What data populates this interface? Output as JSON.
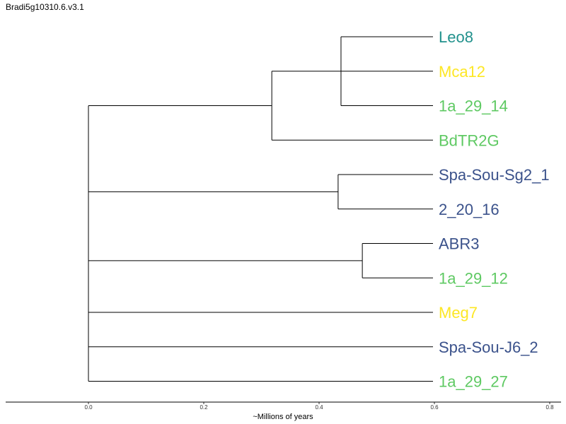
{
  "title": "Bradi5g10310.6.v3.1",
  "colors": {
    "teal": "#21918c",
    "yellow": "#fde725",
    "green": "#5ec962",
    "navy": "#3b528b",
    "line": "#000000"
  },
  "leaves": [
    {
      "name": "Leo8",
      "color": "teal"
    },
    {
      "name": "Mca12",
      "color": "yellow"
    },
    {
      "name": "1a_29_14",
      "color": "green"
    },
    {
      "name": "BdTR2G",
      "color": "green"
    },
    {
      "name": "Spa-Sou-Sg2_1",
      "color": "navy"
    },
    {
      "name": "2_20_16",
      "color": "navy"
    },
    {
      "name": "ABR3",
      "color": "navy"
    },
    {
      "name": "1a_29_12",
      "color": "green"
    },
    {
      "name": "Meg7",
      "color": "yellow"
    },
    {
      "name": "Spa-Sou-J6_2",
      "color": "navy"
    },
    {
      "name": "1a_29_27",
      "color": "green"
    }
  ],
  "tree": {
    "depth": 0.0,
    "children": [
      {
        "depth": 0.318,
        "children": [
          {
            "depth": 0.438,
            "children": [
              {
                "depth": 0.6,
                "leaf": 0
              },
              {
                "depth": 0.6,
                "leaf": 1
              },
              {
                "depth": 0.6,
                "leaf": 2
              }
            ]
          },
          {
            "depth": 0.6,
            "leaf": 3
          }
        ]
      },
      {
        "depth": 0.433,
        "children": [
          {
            "depth": 0.6,
            "leaf": 4
          },
          {
            "depth": 0.6,
            "leaf": 5
          }
        ]
      },
      {
        "depth": 0.475,
        "children": [
          {
            "depth": 0.6,
            "leaf": 6
          },
          {
            "depth": 0.6,
            "leaf": 7
          }
        ]
      },
      {
        "depth": 0.6,
        "leaf": 8
      },
      {
        "depth": 0.6,
        "leaf": 9
      },
      {
        "depth": 0.6,
        "leaf": 10
      }
    ]
  },
  "axis": {
    "label": "~Millions of years",
    "ticks": [
      "0.0",
      "0.2",
      "0.4",
      "0.6",
      "0.8"
    ],
    "tick_values": [
      0.0,
      0.2,
      0.4,
      0.6,
      0.8
    ]
  }
}
